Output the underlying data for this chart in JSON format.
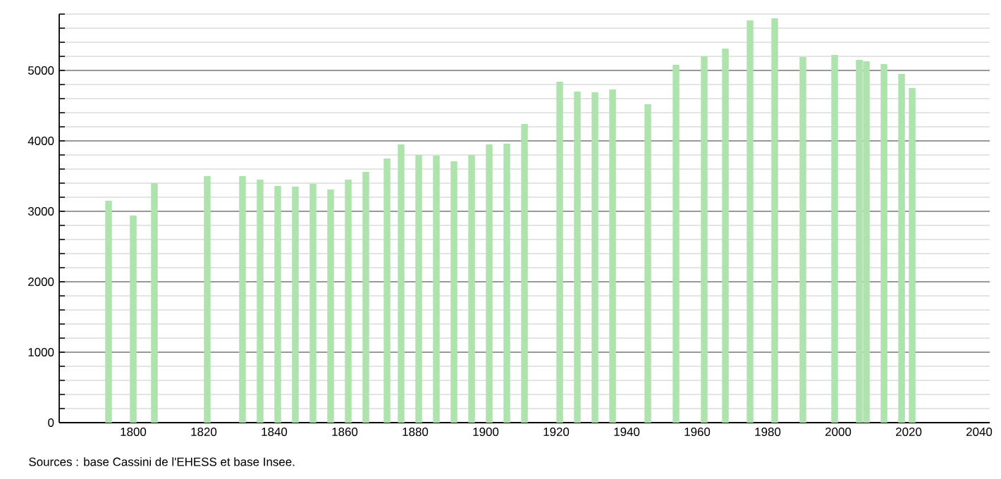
{
  "chart_data": {
    "type": "bar",
    "color": "#aee3ae",
    "x": [
      1793,
      1800,
      1806,
      1821,
      1831,
      1836,
      1841,
      1846,
      1851,
      1856,
      1861,
      1866,
      1872,
      1876,
      1881,
      1886,
      1891,
      1896,
      1901,
      1906,
      1911,
      1921,
      1926,
      1931,
      1936,
      1946,
      1954,
      1962,
      1968,
      1975,
      1982,
      1990,
      1999,
      2006,
      2008,
      2013,
      2018,
      2021
    ],
    "values": [
      3150,
      2940,
      3400,
      3500,
      3500,
      3450,
      3360,
      3350,
      3390,
      3310,
      3450,
      3560,
      3750,
      3950,
      3800,
      3790,
      3710,
      3800,
      3950,
      3960,
      4240,
      4840,
      4700,
      4690,
      4730,
      4520,
      5080,
      5200,
      5310,
      5710,
      5740,
      5190,
      5220,
      5150,
      5130,
      5090,
      4950,
      4750
    ],
    "xlim": [
      1779,
      2043
    ],
    "ylim": [
      0,
      5800
    ],
    "xticks": [
      1800,
      1820,
      1840,
      1860,
      1880,
      1900,
      1920,
      1940,
      1960,
      1980,
      2000,
      2020,
      2040
    ],
    "yticks": [
      0,
      {
        "value": 200,
        "label": null
      },
      {
        "value": 400,
        "label": null
      },
      {
        "value": 600,
        "label": null
      },
      {
        "value": 800,
        "label": null
      },
      1000,
      {
        "value": 1200,
        "label": null
      },
      {
        "value": 1400,
        "label": null
      },
      {
        "value": 1600,
        "label": null
      },
      {
        "value": 1800,
        "label": null
      },
      2000,
      {
        "value": 2200,
        "label": null
      },
      {
        "value": 2400,
        "label": null
      },
      {
        "value": 2600,
        "label": null
      },
      {
        "value": 2800,
        "label": null
      },
      3000,
      {
        "value": 3200,
        "label": null
      },
      {
        "value": 3400,
        "label": null
      },
      {
        "value": 3600,
        "label": null
      },
      {
        "value": 3800,
        "label": null
      },
      4000,
      {
        "value": 4200,
        "label": null
      },
      {
        "value": 4400,
        "label": null
      },
      {
        "value": 4600,
        "label": null
      },
      {
        "value": 4800,
        "label": null
      },
      5000,
      {
        "value": 5200,
        "label": null
      },
      {
        "value": 5400,
        "label": null
      },
      {
        "value": 5600,
        "label": null
      },
      {
        "value": 5800,
        "label": null
      }
    ],
    "grid": "y",
    "annotations": [
      "Sources : base Cassini de l'EHESS et base Insee."
    ]
  }
}
